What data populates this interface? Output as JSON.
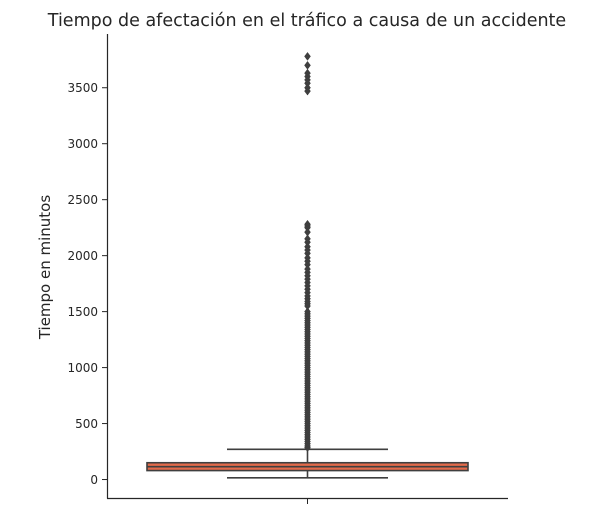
{
  "chart_data": {
    "type": "box",
    "title": "Tiempo de afectación en el tráfico a causa de un accidente",
    "xlabel": "",
    "ylabel": "Tiempo en minutos",
    "ylim": [
      -165,
      3980
    ],
    "yticks": [
      0,
      500,
      1000,
      1500,
      2000,
      2500,
      3000,
      3500
    ],
    "grid": false,
    "colors": {
      "box": "#e26a4a",
      "line": "#3f3f3f",
      "axis": "#262626"
    },
    "boxes": [
      {
        "category": "",
        "whisker_low": 15,
        "q1": 80,
        "median": 115,
        "q3": 150,
        "whisker_high": 270,
        "outliers": [
          3780,
          3700,
          3630,
          3600,
          3570,
          3540,
          3500,
          3470,
          2280,
          2265,
          2250,
          2210,
          2150,
          2120,
          2080,
          2050,
          2020,
          1980,
          1950,
          1920,
          1880,
          1850,
          1820,
          1790,
          1760,
          1730,
          1700,
          1670,
          1640,
          1615,
          1590,
          1570,
          1550,
          1500,
          1480,
          1460,
          1440,
          1420,
          1400,
          1380,
          1360,
          1340,
          1320,
          1300,
          1280,
          1260,
          1240,
          1220,
          1200,
          1180,
          1160,
          1140,
          1120,
          1100,
          1080,
          1060,
          1040,
          1020,
          1000,
          980,
          960,
          940,
          920,
          900,
          880,
          860,
          840,
          820,
          800,
          780,
          760,
          740,
          720,
          700,
          680,
          660,
          640,
          620,
          600,
          580,
          560,
          540,
          520,
          500,
          480,
          460,
          440,
          420,
          400,
          380,
          360,
          340,
          320,
          300,
          285
        ]
      }
    ]
  }
}
